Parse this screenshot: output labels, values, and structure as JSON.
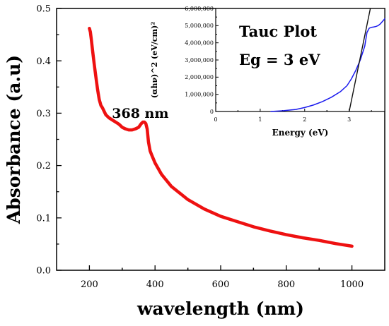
{
  "chart_data": [
    {
      "type": "line",
      "xlabel": "wavelength (nm)",
      "ylabel": "Absorbance (a.u)",
      "xlim": [
        100,
        1100
      ],
      "ylim": [
        0,
        0.5
      ],
      "x_ticks": [
        200,
        400,
        600,
        800,
        1000
      ],
      "y_ticks": [
        0.0,
        0.1,
        0.2,
        0.3,
        0.4,
        0.5
      ],
      "x_tick_labels": [
        "200",
        "400",
        "600",
        "800",
        "1000"
      ],
      "y_tick_labels": [
        "0.0",
        "0.1",
        "0.2",
        "0.3",
        "0.4",
        "0.5"
      ],
      "grid": false,
      "series_color": "#ee1111",
      "series": [
        {
          "x": [
            200,
            203,
            206,
            210,
            215,
            220,
            225,
            230,
            235,
            240,
            250,
            260,
            270,
            280,
            290,
            300,
            310,
            320,
            330,
            340,
            350,
            358,
            363,
            368,
            372,
            376,
            380,
            385,
            390,
            400,
            420,
            450,
            500,
            550,
            600,
            650,
            700,
            750,
            800,
            850,
            900,
            950,
            1000
          ],
          "values": [
            0.462,
            0.455,
            0.44,
            0.418,
            0.392,
            0.368,
            0.345,
            0.326,
            0.315,
            0.31,
            0.297,
            0.291,
            0.287,
            0.283,
            0.279,
            0.273,
            0.27,
            0.268,
            0.268,
            0.27,
            0.273,
            0.28,
            0.283,
            0.283,
            0.28,
            0.27,
            0.245,
            0.228,
            0.22,
            0.205,
            0.183,
            0.16,
            0.135,
            0.117,
            0.103,
            0.093,
            0.083,
            0.075,
            0.068,
            0.062,
            0.057,
            0.051,
            0.046
          ]
        }
      ],
      "annotations": [
        {
          "text": "368 nm",
          "x": 368,
          "y": 0.283
        }
      ]
    },
    {
      "type": "line",
      "xlabel": "Energy (eV)",
      "ylabel": "(αhν)^2 (eV/cm)²",
      "xlim": [
        0,
        3.8
      ],
      "ylim": [
        0,
        6000000
      ],
      "x_ticks": [
        0,
        1,
        2,
        3
      ],
      "y_ticks": [
        0,
        1000000,
        2000000,
        3000000,
        4000000,
        5000000,
        6000000
      ],
      "x_tick_labels": [
        "0",
        "1",
        "2",
        "3"
      ],
      "y_tick_labels": [
        "0",
        "1,000,000",
        "2,000,000",
        "3,000,000",
        "4,000,000",
        "5,000,000",
        "6,000,000"
      ],
      "grid": false,
      "series_color": "#1a1aee",
      "fit_color": "#111111",
      "series": [
        {
          "x": [
            1.24,
            1.5,
            1.8,
            2.0,
            2.2,
            2.4,
            2.6,
            2.8,
            2.95,
            3.05,
            3.15,
            3.25,
            3.3,
            3.35,
            3.4,
            3.45,
            3.5,
            3.55,
            3.6,
            3.65,
            3.7,
            3.75,
            3.8
          ],
          "values": [
            0,
            40000,
            120000,
            230000,
            380000,
            580000,
            830000,
            1150000,
            1500000,
            1900000,
            2400000,
            3000000,
            3400000,
            3800000,
            4600000,
            4850000,
            4900000,
            4920000,
            4950000,
            5000000,
            5100000,
            5250000,
            5400000
          ]
        }
      ],
      "fit_line": {
        "x": [
          3.0,
          3.5
        ],
        "values": [
          0,
          6300000
        ]
      },
      "annotations": [
        {
          "text": "Tauc Plot"
        },
        {
          "text": "Eg = 3 eV"
        }
      ]
    }
  ]
}
